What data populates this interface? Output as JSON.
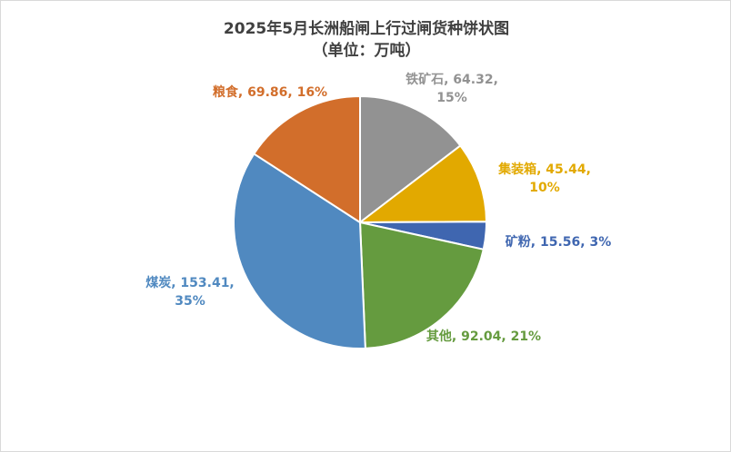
{
  "chart_data": {
    "type": "pie",
    "title": "2025年5月长洲船闸上行过闸货种饼状图",
    "subtitle": "（单位：万吨）",
    "slices": [
      {
        "name": "铁矿石",
        "value": 64.32,
        "percent": "15%",
        "color": "#929292",
        "label_lines": [
          "铁矿石, 64.32,",
          "15%"
        ]
      },
      {
        "name": "集装箱",
        "value": 45.44,
        "percent": "10%",
        "color": "#e2a900",
        "label_lines": [
          "集装箱, 45.44,",
          "10%"
        ]
      },
      {
        "name": "矿粉",
        "value": 15.56,
        "percent": "3%",
        "color": "#3f66b0",
        "label_lines": [
          "矿粉, 15.56, 3%"
        ]
      },
      {
        "name": "其他",
        "value": 92.04,
        "percent": "21%",
        "color": "#659b3f",
        "label_lines": [
          "其他, 92.04, 21%"
        ]
      },
      {
        "name": "煤炭",
        "value": 153.41,
        "percent": "35%",
        "color": "#5089c0",
        "label_lines": [
          "煤炭, 153.41,",
          "35%"
        ]
      },
      {
        "name": "粮食",
        "value": 69.86,
        "percent": "16%",
        "color": "#d26e2b",
        "label_lines": [
          "粮食, 69.86, 16%"
        ]
      }
    ],
    "legend": "none",
    "start_angle_deg": 0,
    "direction": "clockwise"
  }
}
